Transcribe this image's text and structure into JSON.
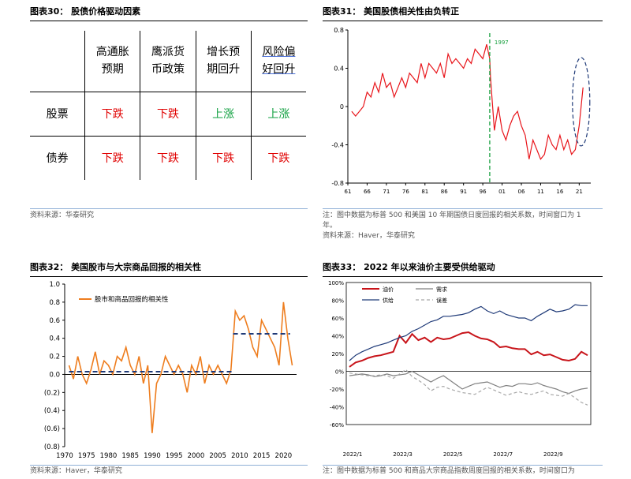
{
  "panels": {
    "p30": {
      "title": "图表30：  股债价格驱动因素",
      "source": "资料来源：华泰研究",
      "table": {
        "headers": [
          "高通胀\n预期",
          "鹰派货\n币政策",
          "增长预\n期回升",
          "风险偏\n好回升"
        ],
        "rows": [
          {
            "label": "股票",
            "cells": [
              "下跌",
              "下跌",
              "上涨",
              "上涨"
            ]
          },
          {
            "label": "债券",
            "cells": [
              "下跌",
              "下跌",
              "下跌",
              "下跌"
            ]
          }
        ]
      }
    },
    "p31": {
      "title": "图表31：  美国股债相关性由负转正",
      "note1": "注：图中数据为标普 500 和美国 10 年期国债日度回报的相关系数，时间窗口为 1",
      "note2": "年。",
      "source": "资料来源：Haver，华泰研究"
    },
    "p32": {
      "title": "图表32：  美国股市与大宗商品回报的相关性",
      "source": "资料来源：Haver，华泰研究"
    },
    "p33": {
      "title": "图表33：  2022 年以来油价主要受供给驱动",
      "note1": "注：图中数据为标普 500 和商品大宗商品指数周度回报的相关系数，时间窗口为"
    }
  },
  "chart_data": [
    {
      "id": "chart31",
      "type": "line",
      "color": "#e8141a",
      "xlim": [
        1961,
        2024
      ],
      "ylim": [
        -0.8,
        0.8
      ],
      "yticks": [
        "0.8",
        "0.4",
        "0",
        "-0.4",
        "-0.8"
      ],
      "ytick_values": [
        0.8,
        0.4,
        0,
        -0.4,
        -0.8
      ],
      "xticks": [
        "61",
        "66",
        "71",
        "76",
        "81",
        "86",
        "91",
        "96",
        "01",
        "06",
        "11",
        "16",
        "21"
      ],
      "xtick_values": [
        1961,
        1966,
        1971,
        1976,
        1981,
        1986,
        1991,
        1996,
        2001,
        2006,
        2011,
        2016,
        2021
      ],
      "annotation": {
        "label": "1997",
        "x": 1997.8,
        "color": "#1aa040"
      },
      "series": [
        {
          "x": [
            1962,
            1963,
            1964,
            1965,
            1966,
            1967,
            1968,
            1969,
            1970,
            1971,
            1972,
            1973,
            1974,
            1975,
            1976,
            1977,
            1978,
            1979,
            1980,
            1981,
            1982,
            1983,
            1984,
            1985,
            1986,
            1987,
            1988,
            1989,
            1990,
            1991,
            1992,
            1993,
            1994,
            1995,
            1996,
            1997,
            1997.8,
            1998,
            1999,
            2000,
            2001,
            2002,
            2003,
            2004,
            2005,
            2006,
            2007,
            2008,
            2009,
            2010,
            2011,
            2012,
            2013,
            2014,
            2015,
            2016,
            2017,
            2018,
            2019,
            2020,
            2021,
            2022
          ],
          "y": [
            -0.05,
            -0.1,
            -0.05,
            0.0,
            0.15,
            0.1,
            0.25,
            0.15,
            0.35,
            0.2,
            0.25,
            0.1,
            0.2,
            0.3,
            0.2,
            0.35,
            0.3,
            0.25,
            0.45,
            0.3,
            0.45,
            0.4,
            0.35,
            0.45,
            0.3,
            0.55,
            0.45,
            0.5,
            0.45,
            0.4,
            0.5,
            0.45,
            0.6,
            0.55,
            0.5,
            0.65,
            0.5,
            0.3,
            -0.25,
            0.0,
            -0.25,
            -0.35,
            -0.2,
            -0.1,
            -0.05,
            -0.2,
            -0.3,
            -0.55,
            -0.35,
            -0.45,
            -0.55,
            -0.5,
            -0.3,
            -0.4,
            -0.45,
            -0.3,
            -0.45,
            -0.35,
            -0.5,
            -0.45,
            -0.2,
            0.2
          ]
        }
      ]
    },
    {
      "id": "chart32",
      "type": "line",
      "color": "#ee7d1e",
      "xlim": [
        1970,
        2023
      ],
      "ylim": [
        -0.8,
        1.0
      ],
      "yticks": [
        "1.0",
        "0.8",
        "0.6",
        "0.4",
        "0.2",
        "0.0",
        "(0.2)",
        "(0.4)",
        "(0.6)",
        "(0.8)"
      ],
      "ytick_values": [
        1.0,
        0.8,
        0.6,
        0.4,
        0.2,
        0.0,
        -0.2,
        -0.4,
        -0.6,
        -0.8
      ],
      "xticks": [
        "1970",
        "1975",
        "1980",
        "1985",
        "1990",
        "1995",
        "2000",
        "2005",
        "2010",
        "2015",
        "2020"
      ],
      "xtick_values": [
        1970,
        1975,
        1980,
        1985,
        1990,
        1995,
        2000,
        2005,
        2010,
        2015,
        2020
      ],
      "legend": "股市和商品回报的相关性",
      "series": [
        {
          "name": "股市和商品回报的相关性",
          "x": [
            1971,
            1972,
            1973,
            1974,
            1975,
            1976,
            1977,
            1978,
            1979,
            1980,
            1981,
            1982,
            1983,
            1984,
            1985,
            1986,
            1987,
            1988,
            1989,
            1990,
            1991,
            1992,
            1993,
            1994,
            1995,
            1996,
            1997,
            1998,
            1999,
            2000,
            2001,
            2002,
            2003,
            2004,
            2005,
            2006,
            2007,
            2008,
            2009,
            2010,
            2011,
            2012,
            2013,
            2014,
            2015,
            2016,
            2017,
            2018,
            2019,
            2020,
            2021,
            2022
          ],
          "y": [
            0.1,
            -0.05,
            0.2,
            0.0,
            -0.1,
            0.05,
            0.25,
            0.0,
            0.15,
            0.1,
            0.0,
            0.2,
            0.15,
            0.3,
            0.1,
            0.0,
            0.2,
            -0.1,
            0.1,
            -0.65,
            -0.1,
            0.0,
            0.2,
            0.1,
            0.0,
            0.1,
            0.0,
            -0.2,
            0.1,
            0.0,
            0.2,
            -0.1,
            0.1,
            0.0,
            0.1,
            0.0,
            -0.1,
            0.05,
            0.7,
            0.6,
            0.65,
            0.5,
            0.3,
            0.2,
            0.6,
            0.5,
            0.4,
            0.3,
            0.1,
            0.8,
            0.4,
            0.1
          ]
        }
      ],
      "avg_lines": [
        {
          "x": [
            1971,
            2008.5
          ],
          "y": 0.03
        },
        {
          "x": [
            2008.5,
            2021.5
          ],
          "y": 0.45
        }
      ]
    },
    {
      "id": "chart33",
      "type": "line",
      "ylim": [
        -60,
        100
      ],
      "yticks": [
        "100%",
        "80%",
        "60%",
        "40%",
        "20%",
        "0%",
        "-20%",
        "-40%",
        "-60%"
      ],
      "ytick_values": [
        100,
        80,
        60,
        40,
        20,
        0,
        -20,
        -40,
        -60
      ],
      "xticks": [
        "2022/1",
        "2022/3",
        "2022/5",
        "2022/7",
        "2022/9"
      ],
      "xtick_positions": [
        0,
        8,
        16,
        24,
        32
      ],
      "series": [
        {
          "name": "油价",
          "color": "#c8141a",
          "style": "solid",
          "values": [
            5,
            10,
            12,
            15,
            17,
            18,
            20,
            22,
            40,
            32,
            42,
            35,
            38,
            33,
            38,
            36,
            37,
            40,
            43,
            44,
            40,
            37,
            36,
            33,
            27,
            28,
            26,
            25,
            25,
            19,
            22,
            18,
            19,
            16,
            13,
            12,
            14,
            22,
            18
          ]
        },
        {
          "name": "需求",
          "color": "#808080",
          "style": "solid",
          "values": [
            -5,
            -4,
            -3,
            -4,
            -6,
            -5,
            -3,
            -5,
            -4,
            -3,
            0,
            -4,
            -8,
            -12,
            -8,
            -5,
            -10,
            -15,
            -20,
            -17,
            -14,
            -13,
            -12,
            -15,
            -18,
            -16,
            -17,
            -14,
            -14,
            -15,
            -13,
            -16,
            -18,
            -20,
            -23,
            -25,
            -22,
            -20,
            -19
          ]
        },
        {
          "name": "供给",
          "color": "#1f3a78",
          "style": "solid",
          "values": [
            12,
            18,
            22,
            25,
            28,
            30,
            32,
            35,
            38,
            40,
            45,
            48,
            52,
            56,
            58,
            62,
            62,
            63,
            64,
            66,
            70,
            73,
            68,
            65,
            68,
            64,
            62,
            60,
            60,
            57,
            62,
            66,
            70,
            67,
            68,
            70,
            75,
            74,
            74
          ]
        },
        {
          "name": "误差",
          "color": "#a8a8a8",
          "style": "dashed",
          "values": [
            -2,
            -3,
            -4,
            -5,
            -5,
            -4,
            -5,
            -8,
            -3,
            2,
            -6,
            -10,
            -15,
            -22,
            -18,
            -17,
            -20,
            -22,
            -24,
            -25,
            -26,
            -22,
            -18,
            -21,
            -24,
            -27,
            -25,
            -23,
            -25,
            -26,
            -24,
            -22,
            -26,
            -27,
            -28,
            -25,
            -30,
            -35,
            -38
          ]
        }
      ]
    }
  ]
}
